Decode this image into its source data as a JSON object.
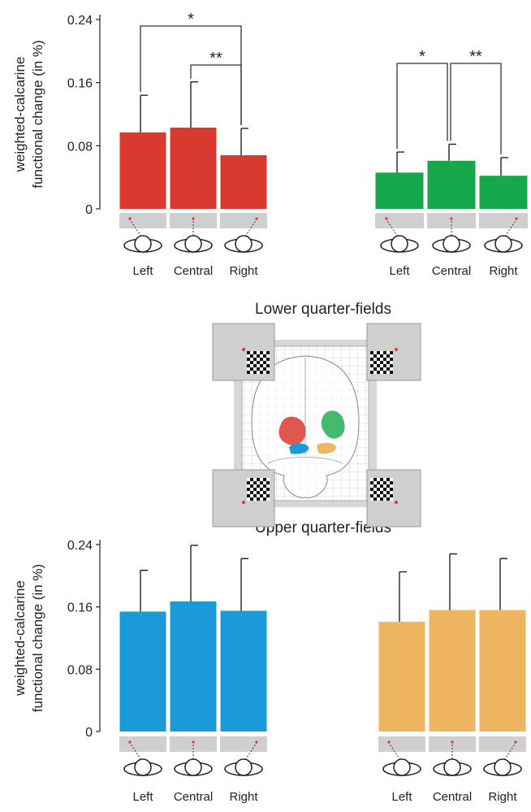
{
  "figure": {
    "lower_title": "Lower quarter-fields",
    "upper_title": "Upper quarter-fields"
  },
  "chart_data": [
    {
      "type": "bar",
      "ylabel": [
        "weighted-calcarine",
        "functional change (in %)"
      ],
      "categories": [
        "Left",
        "Central",
        "Right"
      ],
      "values": [
        0.097,
        0.103,
        0.068
      ],
      "errors": [
        0.047,
        0.058,
        0.034
      ],
      "color": "#d93a2f",
      "ylim": [
        0,
        0.24
      ],
      "yticks": [
        0,
        0.08,
        0.16,
        0.24
      ],
      "significance": [
        {
          "label": "*",
          "between": [
            0,
            2
          ]
        },
        {
          "label": "**",
          "between": [
            1,
            2
          ]
        }
      ]
    },
    {
      "type": "bar",
      "categories": [
        "Left",
        "Central",
        "Right"
      ],
      "values": [
        0.046,
        0.061,
        0.042
      ],
      "errors": [
        0.026,
        0.021,
        0.023
      ],
      "color": "#16a84a",
      "ylim": [
        0,
        0.24
      ],
      "significance": [
        {
          "label": "*",
          "between": [
            0,
            1
          ]
        },
        {
          "label": "**",
          "between": [
            1,
            2
          ]
        }
      ]
    },
    {
      "type": "bar",
      "ylabel": [
        "weighted-calcarine",
        "functional change (in %)"
      ],
      "categories": [
        "Left",
        "Central",
        "Right"
      ],
      "values": [
        0.154,
        0.167,
        0.155
      ],
      "errors": [
        0.053,
        0.072,
        0.067
      ],
      "color": "#1a9ad9",
      "ylim": [
        0,
        0.24
      ],
      "yticks": [
        0,
        0.08,
        0.16,
        0.24
      ]
    },
    {
      "type": "bar",
      "categories": [
        "Left",
        "Central",
        "Right"
      ],
      "values": [
        0.141,
        0.156,
        0.156
      ],
      "errors": [
        0.064,
        0.072,
        0.066
      ],
      "color": "#f0b560",
      "ylim": [
        0,
        0.24
      ]
    }
  ]
}
